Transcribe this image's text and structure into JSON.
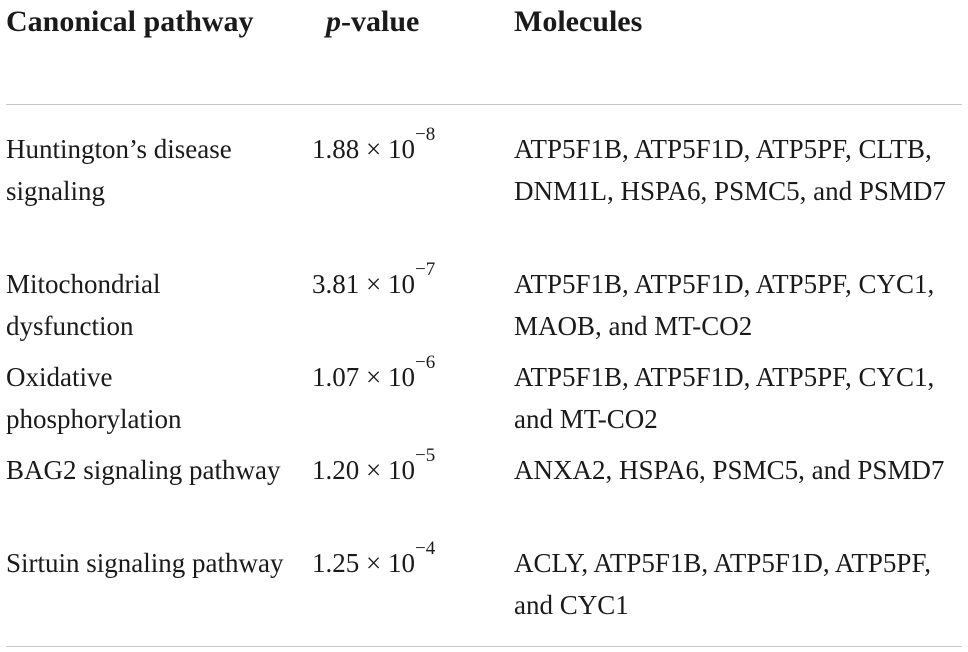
{
  "table": {
    "headers": {
      "pathway": "Canonical pathway",
      "p_italic": "p",
      "p_rest": "-value",
      "molecules": "Molecules"
    },
    "rows": [
      {
        "pathway": "Huntington’s disease signaling",
        "p_mantissa": "1.88 × 10",
        "p_exponent": "−8",
        "molecules": "ATP5F1B, ATP5F1D, ATP5PF, CLTB, DNM1L, HSPA6, PSMC5, and PSMD7"
      },
      {
        "pathway": "Mitochondrial dysfunction",
        "p_mantissa": "3.81 × 10",
        "p_exponent": "−7",
        "molecules": "ATP5F1B, ATP5F1D, ATP5PF, CYC1, MAOB, and MT-CO2"
      },
      {
        "pathway": "Oxidative phosphorylation",
        "p_mantissa": "1.07 × 10",
        "p_exponent": "−6",
        "molecules": "ATP5F1B, ATP5F1D, ATP5PF, CYC1, and MT-CO2"
      },
      {
        "pathway": "BAG2 signaling pathway",
        "p_mantissa": "1.20 × 10",
        "p_exponent": "−5",
        "molecules": "ANXA2, HSPA6, PSMC5, and PSMD7"
      },
      {
        "pathway": "Sirtuin signaling pathway",
        "p_mantissa": "1.25 × 10",
        "p_exponent": "−4",
        "molecules": "ACLY, ATP5F1B, ATP5F1D, ATP5PF, and CYC1"
      }
    ]
  }
}
